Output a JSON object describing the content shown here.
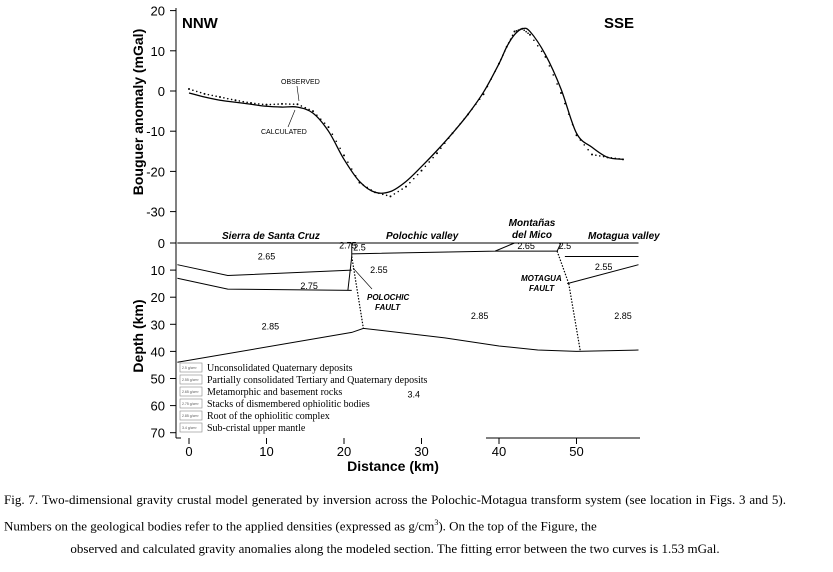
{
  "chart_data": [
    {
      "type": "line",
      "panel": "gravity",
      "ylabel": "Bouguer anomaly (mGal)",
      "ylim": [
        -30,
        20
      ],
      "xlim": [
        0,
        58
      ],
      "y_ticks": [
        20,
        10,
        0,
        -10,
        -20,
        -30
      ],
      "y_tick_labels": [
        "20",
        "10",
        "0",
        "-10",
        "-20",
        "-30"
      ],
      "direction_left": "NNW",
      "direction_right": "SSE",
      "annotations": {
        "observed": "OBSERVED",
        "calculated": "CALCULATED"
      },
      "series": [
        {
          "name": "Calculated",
          "style": "solid",
          "x": [
            0,
            2,
            4,
            6,
            8,
            10,
            12,
            14,
            16,
            18,
            20,
            22,
            24,
            26,
            28,
            30,
            32,
            34,
            36,
            38,
            40,
            41,
            42,
            43,
            44,
            46,
            48,
            50,
            52,
            54,
            56
          ],
          "y": [
            -0.5,
            -1.5,
            -2.3,
            -2.8,
            -3.3,
            -3.8,
            -4,
            -4,
            -5.5,
            -10,
            -17,
            -22.5,
            -25.2,
            -25,
            -22.5,
            -18.8,
            -14.8,
            -10.5,
            -5.8,
            -0.3,
            6.8,
            11,
            14,
            15.5,
            14.8,
            9,
            0.5,
            -10.5,
            -14,
            -16.5,
            -17
          ]
        },
        {
          "name": "Observed",
          "style": "dotted",
          "x": [
            0,
            2,
            4,
            6,
            8,
            10,
            12,
            14,
            16,
            18,
            20,
            22,
            24,
            26,
            28,
            30,
            32,
            34,
            36,
            38,
            40,
            41,
            42,
            43,
            44,
            46,
            48,
            50,
            52,
            54,
            56
          ],
          "y": [
            0.5,
            -0.7,
            -1.5,
            -2.3,
            -3,
            -3.4,
            -3.2,
            -3.3,
            -5,
            -9,
            -16,
            -22.8,
            -25.2,
            -26.2,
            -23.8,
            -19.8,
            -15.5,
            -10.5,
            -5.8,
            -0.8,
            6.8,
            11,
            14.8,
            15.5,
            14,
            8.5,
            -0.5,
            -11,
            -15.8,
            -16.5,
            -17
          ]
        }
      ]
    },
    {
      "type": "cross-section",
      "panel": "crustal-model",
      "xlabel": "Distance (km)",
      "ylabel": "Depth (km)",
      "xlim": [
        0,
        58
      ],
      "ylim": [
        70,
        0
      ],
      "x_ticks": [
        0,
        10,
        20,
        30,
        40,
        50
      ],
      "x_tick_labels": [
        "0",
        "10",
        "20",
        "30",
        "40",
        "50"
      ],
      "y_ticks": [
        0,
        10,
        20,
        30,
        40,
        50,
        60,
        70
      ],
      "y_tick_labels": [
        "0",
        "10",
        "20",
        "30",
        "40",
        "50",
        "60",
        "70"
      ],
      "region_labels": [
        "Sierra de Santa Cruz",
        "Polochic valley",
        "Montañas",
        "del Mico",
        "Motagua valley"
      ],
      "fault_labels": [
        {
          "line1": "POLOCHIC",
          "line2": "FAULT"
        },
        {
          "line1": "MOTAGUA",
          "line2": "FAULT"
        }
      ],
      "boundaries": [
        {
          "x": [
            -1.5,
            58
          ],
          "y": [
            0,
            0
          ]
        },
        {
          "x": [
            -1.5,
            21,
            22.5,
            33,
            40,
            45,
            50,
            58
          ],
          "y": [
            -44,
            -33,
            -31.5,
            -35,
            -38,
            -39.5,
            -40,
            -39.5
          ]
        },
        {
          "x": [
            -1.5,
            5,
            21
          ],
          "y": [
            -8,
            -12,
            -10
          ]
        },
        {
          "x": [
            -1.5,
            5,
            21
          ],
          "y": [
            -13,
            -17,
            -17.5
          ]
        },
        {
          "x": [
            21,
            21,
            20.5
          ],
          "y": [
            0,
            -5,
            -17.5
          ]
        },
        {
          "x": [
            21,
            39.5,
            42
          ],
          "y": [
            -4,
            -3,
            0
          ]
        },
        {
          "x": [
            39.5,
            47.5
          ],
          "y": [
            -3,
            -3
          ]
        },
        {
          "x": [
            47.5,
            48
          ],
          "y": [
            -3,
            0
          ]
        },
        {
          "x": [
            48.5,
            56.5,
            58
          ],
          "y": [
            -5,
            -5,
            -5
          ]
        },
        {
          "x": [
            48.8,
            58
          ],
          "y": [
            -15,
            -8
          ]
        }
      ],
      "faults": [
        {
          "x": [
            21,
            22.5
          ],
          "y": [
            -5,
            -31.5
          ]
        },
        {
          "x": [
            47.5,
            49
          ],
          "y": [
            -3,
            -15
          ]
        },
        {
          "x": [
            49,
            50.5
          ],
          "y": [
            -15,
            -40
          ]
        }
      ],
      "densities": [
        {
          "label": "2.75",
          "x": 20.5,
          "y": -2
        },
        {
          "label": "2.65",
          "x": 10,
          "y": -6
        },
        {
          "label": "2.5",
          "x": 22,
          "y": -2.7
        },
        {
          "label": "2.55",
          "x": 24.5,
          "y": -11
        },
        {
          "label": "2.75",
          "x": 15.5,
          "y": -17
        },
        {
          "label": "2.85",
          "x": 10.5,
          "y": -32
        },
        {
          "label": "2.85",
          "x": 37.5,
          "y": -28
        },
        {
          "label": "2.65",
          "x": 43.5,
          "y": -2.3
        },
        {
          "label": "2.5",
          "x": 48.5,
          "y": -2.3
        },
        {
          "label": "2.55",
          "x": 53.5,
          "y": -10
        },
        {
          "label": "2.85",
          "x": 56,
          "y": -28
        },
        {
          "label": "3.4",
          "x": 29,
          "y": -57
        }
      ],
      "legend": [
        {
          "code": "2.5 g/cm³",
          "label": "Unconsolidated Quaternary deposits"
        },
        {
          "code": "2.55 g/cm³",
          "label": "Partially consolidated Tertiary and Quaternary deposits"
        },
        {
          "code": "2.65 g/cm³",
          "label": "Metamorphic and basement rocks"
        },
        {
          "code": "2.75 g/cm³",
          "label": "Stacks of dismembered ophiolitic bodies"
        },
        {
          "code": "2.85 g/cm³",
          "label": "Root of the ophiolitic complex"
        },
        {
          "code": "3.4 g/cm³",
          "label": "Sub-cristal upper mantle"
        }
      ]
    }
  ],
  "caption": {
    "part1": "Fig. 7. Two-dimensional gravity crustal model generated by inversion across the Polochic-Motagua transform system (see location in Figs. 3 and 5). Numbers on the geological bodies refer to the applied densities (expressed as g/cm",
    "superscript": "3",
    "part2": "). On the top of the Figure, the",
    "line3": "observed and calculated gravity anomalies along the modeled section. The fitting error between the two curves is 1.53 mGal."
  }
}
